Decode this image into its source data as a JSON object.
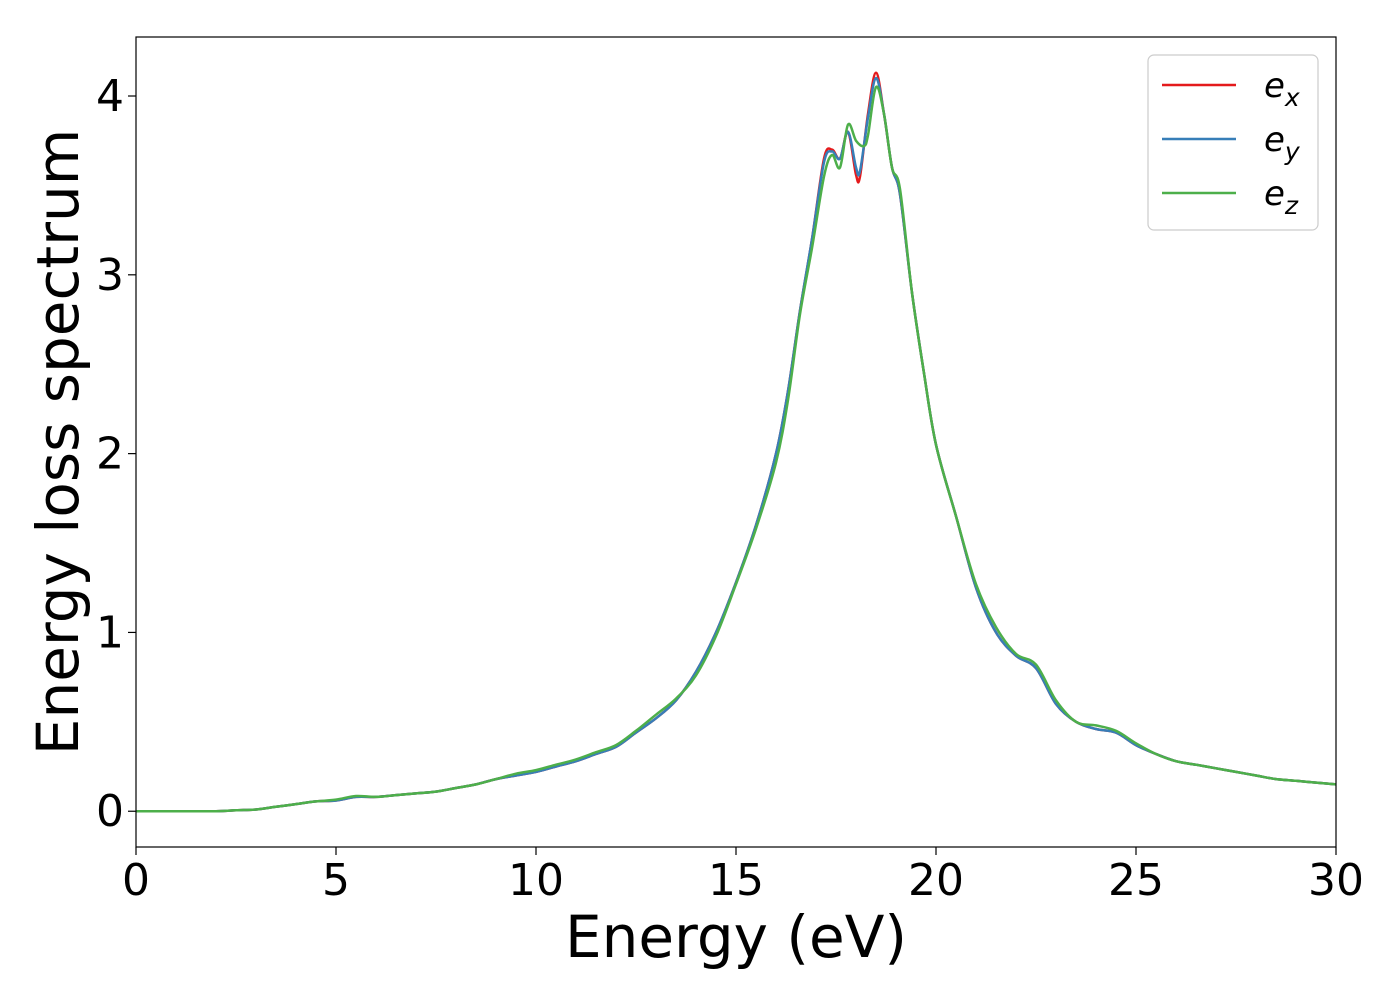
{
  "chart_data": {
    "type": "line",
    "title": "",
    "xlabel": "Energy (eV)",
    "ylabel": "Energy loss spectrum",
    "xlim": [
      0,
      30
    ],
    "ylim": [
      -0.2,
      4.33
    ],
    "xticks": [
      0,
      5,
      10,
      15,
      20,
      25,
      30
    ],
    "yticks": [
      0,
      1,
      2,
      3,
      4
    ],
    "grid": false,
    "legend_position": "top-right",
    "series": [
      {
        "name": "e",
        "subscript": "x",
        "color": "#e41a1c",
        "points": [
          [
            0,
            0
          ],
          [
            1,
            0
          ],
          [
            2,
            0
          ],
          [
            2.5,
            0.005
          ],
          [
            3,
            0.01
          ],
          [
            3.5,
            0.025
          ],
          [
            4,
            0.04
          ],
          [
            4.5,
            0.055
          ],
          [
            5,
            0.06
          ],
          [
            5.5,
            0.08
          ],
          [
            6,
            0.08
          ],
          [
            6.5,
            0.09
          ],
          [
            7,
            0.1
          ],
          [
            7.5,
            0.11
          ],
          [
            8,
            0.13
          ],
          [
            8.5,
            0.15
          ],
          [
            9,
            0.18
          ],
          [
            9.5,
            0.2
          ],
          [
            10,
            0.22
          ],
          [
            10.5,
            0.25
          ],
          [
            11,
            0.28
          ],
          [
            11.5,
            0.32
          ],
          [
            12,
            0.36
          ],
          [
            12.5,
            0.44
          ],
          [
            13,
            0.52
          ],
          [
            13.5,
            0.62
          ],
          [
            14,
            0.78
          ],
          [
            14.5,
            1.0
          ],
          [
            15,
            1.28
          ],
          [
            15.5,
            1.6
          ],
          [
            16,
            2.0
          ],
          [
            16.3,
            2.35
          ],
          [
            16.6,
            2.8
          ],
          [
            16.9,
            3.2
          ],
          [
            17.2,
            3.65
          ],
          [
            17.4,
            3.7
          ],
          [
            17.6,
            3.65
          ],
          [
            17.8,
            3.8
          ],
          [
            18.0,
            3.56
          ],
          [
            18.1,
            3.55
          ],
          [
            18.3,
            3.9
          ],
          [
            18.5,
            4.13
          ],
          [
            18.7,
            3.9
          ],
          [
            18.9,
            3.6
          ],
          [
            19.1,
            3.45
          ],
          [
            19.4,
            2.9
          ],
          [
            19.7,
            2.45
          ],
          [
            20,
            2.05
          ],
          [
            20.5,
            1.65
          ],
          [
            21,
            1.25
          ],
          [
            21.5,
            1.0
          ],
          [
            22,
            0.87
          ],
          [
            22.5,
            0.8
          ],
          [
            23,
            0.6
          ],
          [
            23.5,
            0.5
          ],
          [
            24,
            0.46
          ],
          [
            24.5,
            0.44
          ],
          [
            25,
            0.37
          ],
          [
            25.5,
            0.32
          ],
          [
            26,
            0.28
          ],
          [
            26.5,
            0.26
          ],
          [
            27,
            0.24
          ],
          [
            27.5,
            0.22
          ],
          [
            28,
            0.2
          ],
          [
            28.5,
            0.18
          ],
          [
            29,
            0.17
          ],
          [
            29.5,
            0.16
          ],
          [
            30,
            0.15
          ]
        ]
      },
      {
        "name": "e",
        "subscript": "y",
        "color": "#377eb8",
        "points": [
          [
            0,
            0
          ],
          [
            1,
            0
          ],
          [
            2,
            0
          ],
          [
            2.5,
            0.005
          ],
          [
            3,
            0.01
          ],
          [
            3.5,
            0.025
          ],
          [
            4,
            0.04
          ],
          [
            4.5,
            0.055
          ],
          [
            5,
            0.06
          ],
          [
            5.5,
            0.08
          ],
          [
            6,
            0.08
          ],
          [
            6.5,
            0.09
          ],
          [
            7,
            0.1
          ],
          [
            7.5,
            0.11
          ],
          [
            8,
            0.13
          ],
          [
            8.5,
            0.15
          ],
          [
            9,
            0.18
          ],
          [
            9.5,
            0.2
          ],
          [
            10,
            0.22
          ],
          [
            10.5,
            0.25
          ],
          [
            11,
            0.28
          ],
          [
            11.5,
            0.32
          ],
          [
            12,
            0.36
          ],
          [
            12.5,
            0.44
          ],
          [
            13,
            0.52
          ],
          [
            13.5,
            0.62
          ],
          [
            14,
            0.78
          ],
          [
            14.5,
            1.0
          ],
          [
            15,
            1.28
          ],
          [
            15.5,
            1.6
          ],
          [
            16,
            2.0
          ],
          [
            16.3,
            2.35
          ],
          [
            16.6,
            2.8
          ],
          [
            16.9,
            3.2
          ],
          [
            17.2,
            3.63
          ],
          [
            17.4,
            3.69
          ],
          [
            17.6,
            3.65
          ],
          [
            17.8,
            3.8
          ],
          [
            18.0,
            3.6
          ],
          [
            18.1,
            3.58
          ],
          [
            18.3,
            3.88
          ],
          [
            18.5,
            4.1
          ],
          [
            18.7,
            3.9
          ],
          [
            18.9,
            3.6
          ],
          [
            19.1,
            3.45
          ],
          [
            19.4,
            2.9
          ],
          [
            19.7,
            2.45
          ],
          [
            20,
            2.05
          ],
          [
            20.5,
            1.65
          ],
          [
            21,
            1.25
          ],
          [
            21.5,
            1.0
          ],
          [
            22,
            0.87
          ],
          [
            22.5,
            0.8
          ],
          [
            23,
            0.6
          ],
          [
            23.5,
            0.5
          ],
          [
            24,
            0.46
          ],
          [
            24.5,
            0.44
          ],
          [
            25,
            0.37
          ],
          [
            25.5,
            0.32
          ],
          [
            26,
            0.28
          ],
          [
            26.5,
            0.26
          ],
          [
            27,
            0.24
          ],
          [
            27.5,
            0.22
          ],
          [
            28,
            0.2
          ],
          [
            28.5,
            0.18
          ],
          [
            29,
            0.17
          ],
          [
            29.5,
            0.16
          ],
          [
            30,
            0.15
          ]
        ]
      },
      {
        "name": "e",
        "subscript": "z",
        "color": "#4daf4a",
        "points": [
          [
            0,
            0
          ],
          [
            1,
            0
          ],
          [
            2,
            0
          ],
          [
            2.5,
            0.005
          ],
          [
            3,
            0.01
          ],
          [
            3.5,
            0.025
          ],
          [
            4,
            0.04
          ],
          [
            4.5,
            0.055
          ],
          [
            5,
            0.065
          ],
          [
            5.5,
            0.085
          ],
          [
            6,
            0.08
          ],
          [
            6.5,
            0.09
          ],
          [
            7,
            0.1
          ],
          [
            7.5,
            0.11
          ],
          [
            8,
            0.13
          ],
          [
            8.5,
            0.15
          ],
          [
            9,
            0.18
          ],
          [
            9.5,
            0.21
          ],
          [
            10,
            0.23
          ],
          [
            10.5,
            0.26
          ],
          [
            11,
            0.29
          ],
          [
            11.5,
            0.33
          ],
          [
            12,
            0.37
          ],
          [
            12.5,
            0.45
          ],
          [
            13,
            0.54
          ],
          [
            13.5,
            0.63
          ],
          [
            14,
            0.76
          ],
          [
            14.5,
            0.98
          ],
          [
            15,
            1.27
          ],
          [
            15.5,
            1.58
          ],
          [
            16,
            1.95
          ],
          [
            16.3,
            2.3
          ],
          [
            16.6,
            2.78
          ],
          [
            16.9,
            3.15
          ],
          [
            17.2,
            3.55
          ],
          [
            17.4,
            3.67
          ],
          [
            17.6,
            3.6
          ],
          [
            17.8,
            3.84
          ],
          [
            18.0,
            3.75
          ],
          [
            18.2,
            3.72
          ],
          [
            18.3,
            3.78
          ],
          [
            18.5,
            4.05
          ],
          [
            18.7,
            3.9
          ],
          [
            18.9,
            3.6
          ],
          [
            19.1,
            3.48
          ],
          [
            19.4,
            2.9
          ],
          [
            19.7,
            2.45
          ],
          [
            20,
            2.05
          ],
          [
            20.5,
            1.65
          ],
          [
            21,
            1.27
          ],
          [
            21.5,
            1.03
          ],
          [
            22,
            0.88
          ],
          [
            22.5,
            0.82
          ],
          [
            23,
            0.62
          ],
          [
            23.5,
            0.5
          ],
          [
            24,
            0.48
          ],
          [
            24.5,
            0.45
          ],
          [
            25,
            0.38
          ],
          [
            25.5,
            0.32
          ],
          [
            26,
            0.28
          ],
          [
            26.5,
            0.26
          ],
          [
            27,
            0.24
          ],
          [
            27.5,
            0.22
          ],
          [
            28,
            0.2
          ],
          [
            28.5,
            0.18
          ],
          [
            29,
            0.17
          ],
          [
            29.5,
            0.16
          ],
          [
            30,
            0.15
          ]
        ]
      }
    ]
  }
}
